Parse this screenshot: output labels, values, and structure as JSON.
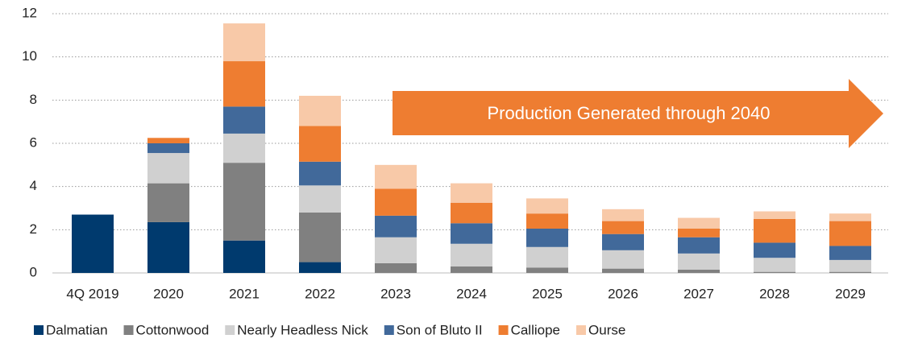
{
  "chart_data": {
    "type": "stacked_bar",
    "annotation": "Production Generated through 2040",
    "annotation_color": "#ee7d31",
    "categories": [
      "4Q 2019",
      "2020",
      "2021",
      "2022",
      "2023",
      "2024",
      "2025",
      "2026",
      "2027",
      "2028",
      "2029"
    ],
    "series": [
      {
        "name": "Dalmatian",
        "color": "#003a6e",
        "values": [
          2.7,
          2.35,
          1.5,
          0.5,
          0,
          0,
          0,
          0,
          0,
          0,
          0
        ]
      },
      {
        "name": "Cottonwood",
        "color": "#808080",
        "values": [
          0,
          1.8,
          3.6,
          2.3,
          0.45,
          0.3,
          0.25,
          0.2,
          0.15,
          0.05,
          0.05
        ]
      },
      {
        "name": "Nearly Headless Nick",
        "color": "#d0d0d0",
        "values": [
          0,
          1.4,
          1.35,
          1.25,
          1.2,
          1.05,
          0.95,
          0.85,
          0.75,
          0.65,
          0.55
        ]
      },
      {
        "name": "Son of Bluto II",
        "color": "#41699a",
        "values": [
          0,
          0.45,
          1.25,
          1.1,
          1.0,
          0.95,
          0.85,
          0.75,
          0.75,
          0.7,
          0.65
        ]
      },
      {
        "name": "Calliope",
        "color": "#ee7d31",
        "values": [
          0,
          0.25,
          2.1,
          1.65,
          1.25,
          0.95,
          0.7,
          0.6,
          0.4,
          1.1,
          1.15
        ]
      },
      {
        "name": "Ourse",
        "color": "#f8c9a8",
        "values": [
          0,
          0,
          1.75,
          1.4,
          1.1,
          0.9,
          0.7,
          0.55,
          0.5,
          0.35,
          0.35
        ]
      }
    ],
    "ylim": [
      0,
      12
    ],
    "yticks": [
      0,
      2,
      4,
      6,
      8,
      10,
      12
    ],
    "grid": true,
    "legend": "bottom"
  }
}
